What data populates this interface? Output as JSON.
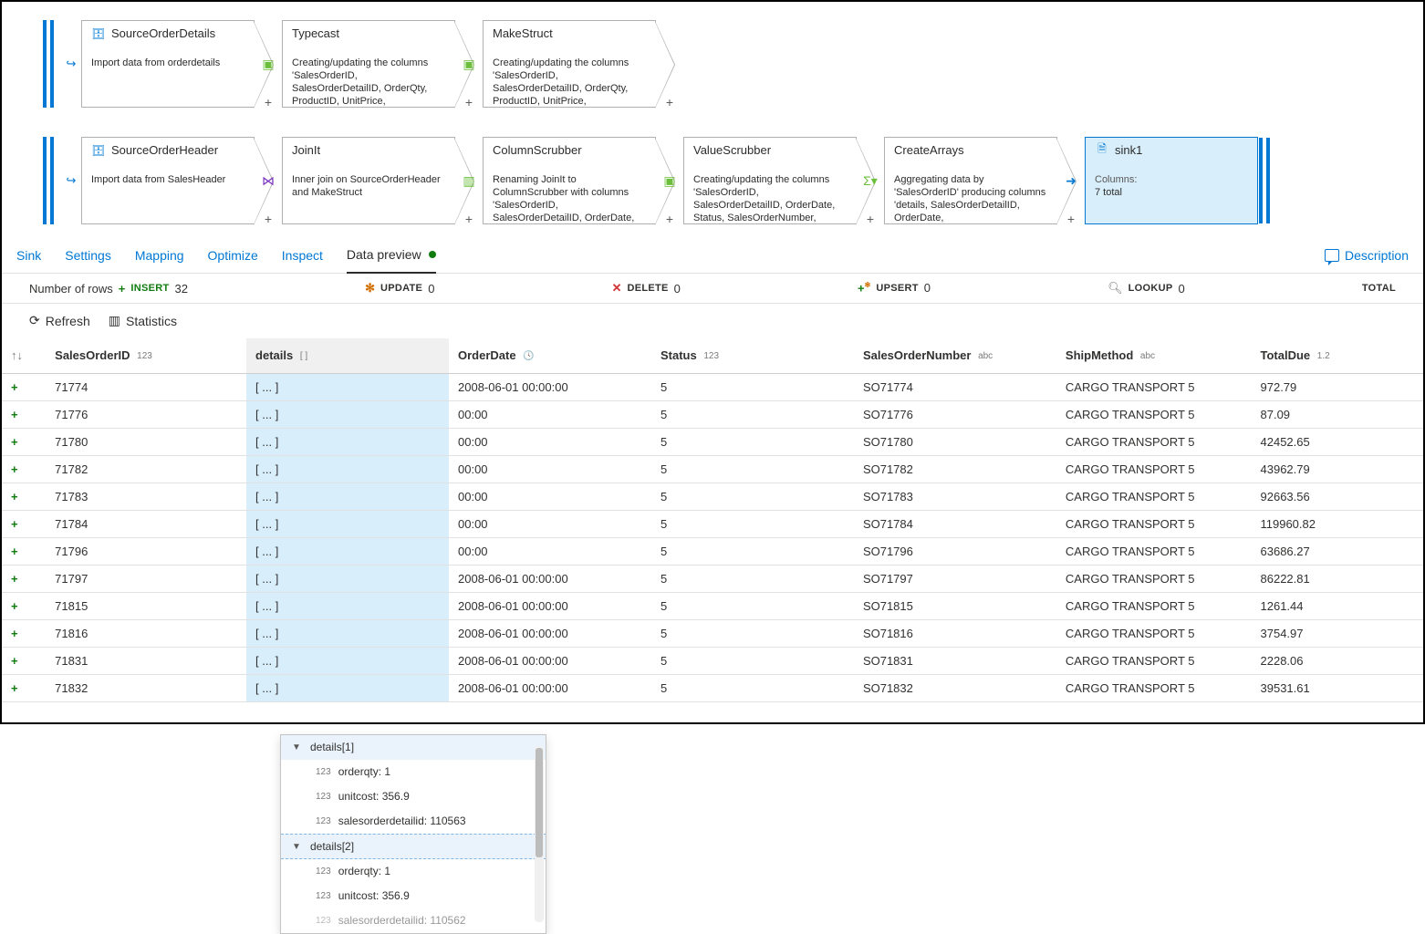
{
  "pipeline": {
    "rows": [
      {
        "source_icon_color": "#0078d4",
        "nodes": [
          {
            "icon": "db",
            "icon_color": "#0078d4",
            "title": "SourceOrderDetails",
            "body": "Import data from orderdetails"
          },
          {
            "icon": "",
            "title": "Typecast",
            "body": "Creating/updating the columns 'SalesOrderID, SalesOrderDetailID, OrderQty, ProductID, UnitPrice,"
          },
          {
            "icon": "",
            "title": "MakeStruct",
            "body": "Creating/updating the columns 'SalesOrderID, SalesOrderDetailID, OrderQty, ProductID, UnitPrice,"
          }
        ],
        "connector_icons": [
          "derive-green",
          "derive-green"
        ]
      },
      {
        "source_icon_color": "#0078d4",
        "nodes": [
          {
            "icon": "db",
            "icon_color": "#0078d4",
            "title": "SourceOrderHeader",
            "body": "Import data from SalesHeader"
          },
          {
            "icon": "",
            "title": "JoinIt",
            "body": "Inner join on SourceOrderHeader and MakeStruct"
          },
          {
            "icon": "",
            "title": "ColumnScrubber",
            "body": "Renaming JoinIt to ColumnScrubber with columns 'SalesOrderID, SalesOrderDetailID, OrderDate,"
          },
          {
            "icon": "",
            "title": "ValueScrubber",
            "body": "Creating/updating the columns 'SalesOrderID, SalesOrderDetailID, OrderDate, Status, SalesOrderNumber,"
          },
          {
            "icon": "",
            "title": "CreateArrays",
            "body": "Aggregating data by 'SalesOrderID' producing columns 'details, SalesOrderDetailID, OrderDate,"
          },
          {
            "icon": "sink",
            "icon_color": "#0078d4",
            "title": "sink1",
            "body_label": "Columns:",
            "body_value": "7 total",
            "selected": true
          }
        ],
        "connector_icons": [
          "join-purple",
          "select-green",
          "derive-green",
          "agg-green",
          "sink-blue"
        ]
      }
    ]
  },
  "tabs": {
    "items": [
      "Sink",
      "Settings",
      "Mapping",
      "Optimize",
      "Inspect",
      "Data preview"
    ],
    "active_index": 5,
    "description_link": "Description"
  },
  "summary": {
    "rows_label": "Number of rows",
    "insert_label": "INSERT",
    "insert_count": 32,
    "update_label": "UPDATE",
    "update_count": 0,
    "delete_label": "DELETE",
    "delete_count": 0,
    "upsert_label": "UPSERT",
    "upsert_count": 0,
    "lookup_label": "LOOKUP",
    "lookup_count": 0,
    "total_label": "TOTAL"
  },
  "actions": {
    "refresh": "Refresh",
    "statistics": "Statistics"
  },
  "columns": [
    {
      "name": "SalesOrderID",
      "type": "123"
    },
    {
      "name": "details",
      "type": "[ ]"
    },
    {
      "name": "OrderDate",
      "type": "date"
    },
    {
      "name": "Status",
      "type": "123"
    },
    {
      "name": "SalesOrderNumber",
      "type": "abc"
    },
    {
      "name": "ShipMethod",
      "type": "abc"
    },
    {
      "name": "TotalDue",
      "type": "1.2"
    }
  ],
  "rows": [
    {
      "id": "71774",
      "details": "[ ... ]",
      "date": "2008-06-01 00:00:00",
      "status": "5",
      "son": "SO71774",
      "ship": "CARGO TRANSPORT 5",
      "due": "972.79"
    },
    {
      "id": "71776",
      "details": "[ ... ]",
      "date": "00:00",
      "status": "5",
      "son": "SO71776",
      "ship": "CARGO TRANSPORT 5",
      "due": "87.09"
    },
    {
      "id": "71780",
      "details": "[ ... ]",
      "date": "00:00",
      "status": "5",
      "son": "SO71780",
      "ship": "CARGO TRANSPORT 5",
      "due": "42452.65"
    },
    {
      "id": "71782",
      "details": "[ ... ]",
      "date": "00:00",
      "status": "5",
      "son": "SO71782",
      "ship": "CARGO TRANSPORT 5",
      "due": "43962.79"
    },
    {
      "id": "71783",
      "details": "[ ... ]",
      "date": "00:00",
      "status": "5",
      "son": "SO71783",
      "ship": "CARGO TRANSPORT 5",
      "due": "92663.56"
    },
    {
      "id": "71784",
      "details": "[ ... ]",
      "date": "00:00",
      "status": "5",
      "son": "SO71784",
      "ship": "CARGO TRANSPORT 5",
      "due": "119960.82"
    },
    {
      "id": "71796",
      "details": "[ ... ]",
      "date": "00:00",
      "status": "5",
      "son": "SO71796",
      "ship": "CARGO TRANSPORT 5",
      "due": "63686.27"
    },
    {
      "id": "71797",
      "details": "[ ... ]",
      "date": "2008-06-01 00:00:00",
      "status": "5",
      "son": "SO71797",
      "ship": "CARGO TRANSPORT 5",
      "due": "86222.81"
    },
    {
      "id": "71815",
      "details": "[ ... ]",
      "date": "2008-06-01 00:00:00",
      "status": "5",
      "son": "SO71815",
      "ship": "CARGO TRANSPORT 5",
      "due": "1261.44"
    },
    {
      "id": "71816",
      "details": "[ ... ]",
      "date": "2008-06-01 00:00:00",
      "status": "5",
      "son": "SO71816",
      "ship": "CARGO TRANSPORT 5",
      "due": "3754.97"
    },
    {
      "id": "71831",
      "details": "[ ... ]",
      "date": "2008-06-01 00:00:00",
      "status": "5",
      "son": "SO71831",
      "ship": "CARGO TRANSPORT 5",
      "due": "2228.06"
    },
    {
      "id": "71832",
      "details": "[ ... ]",
      "date": "2008-06-01 00:00:00",
      "status": "5",
      "son": "SO71832",
      "ship": "CARGO TRANSPORT 5",
      "due": "39531.61"
    }
  ],
  "popup": {
    "header1": "details[1]",
    "items1": [
      "orderqty: 1",
      "unitcost: 356.9",
      "salesorderdetailid: 110563"
    ],
    "header2": "details[2]",
    "items2": [
      "orderqty: 1",
      "unitcost: 356.9",
      "salesorderdetailid: 110562"
    ]
  },
  "colors": {
    "accent": "#0078d4",
    "green": "#107c10",
    "orange": "#d16f00",
    "red": "#d13438",
    "purple": "#7b2fbf"
  }
}
